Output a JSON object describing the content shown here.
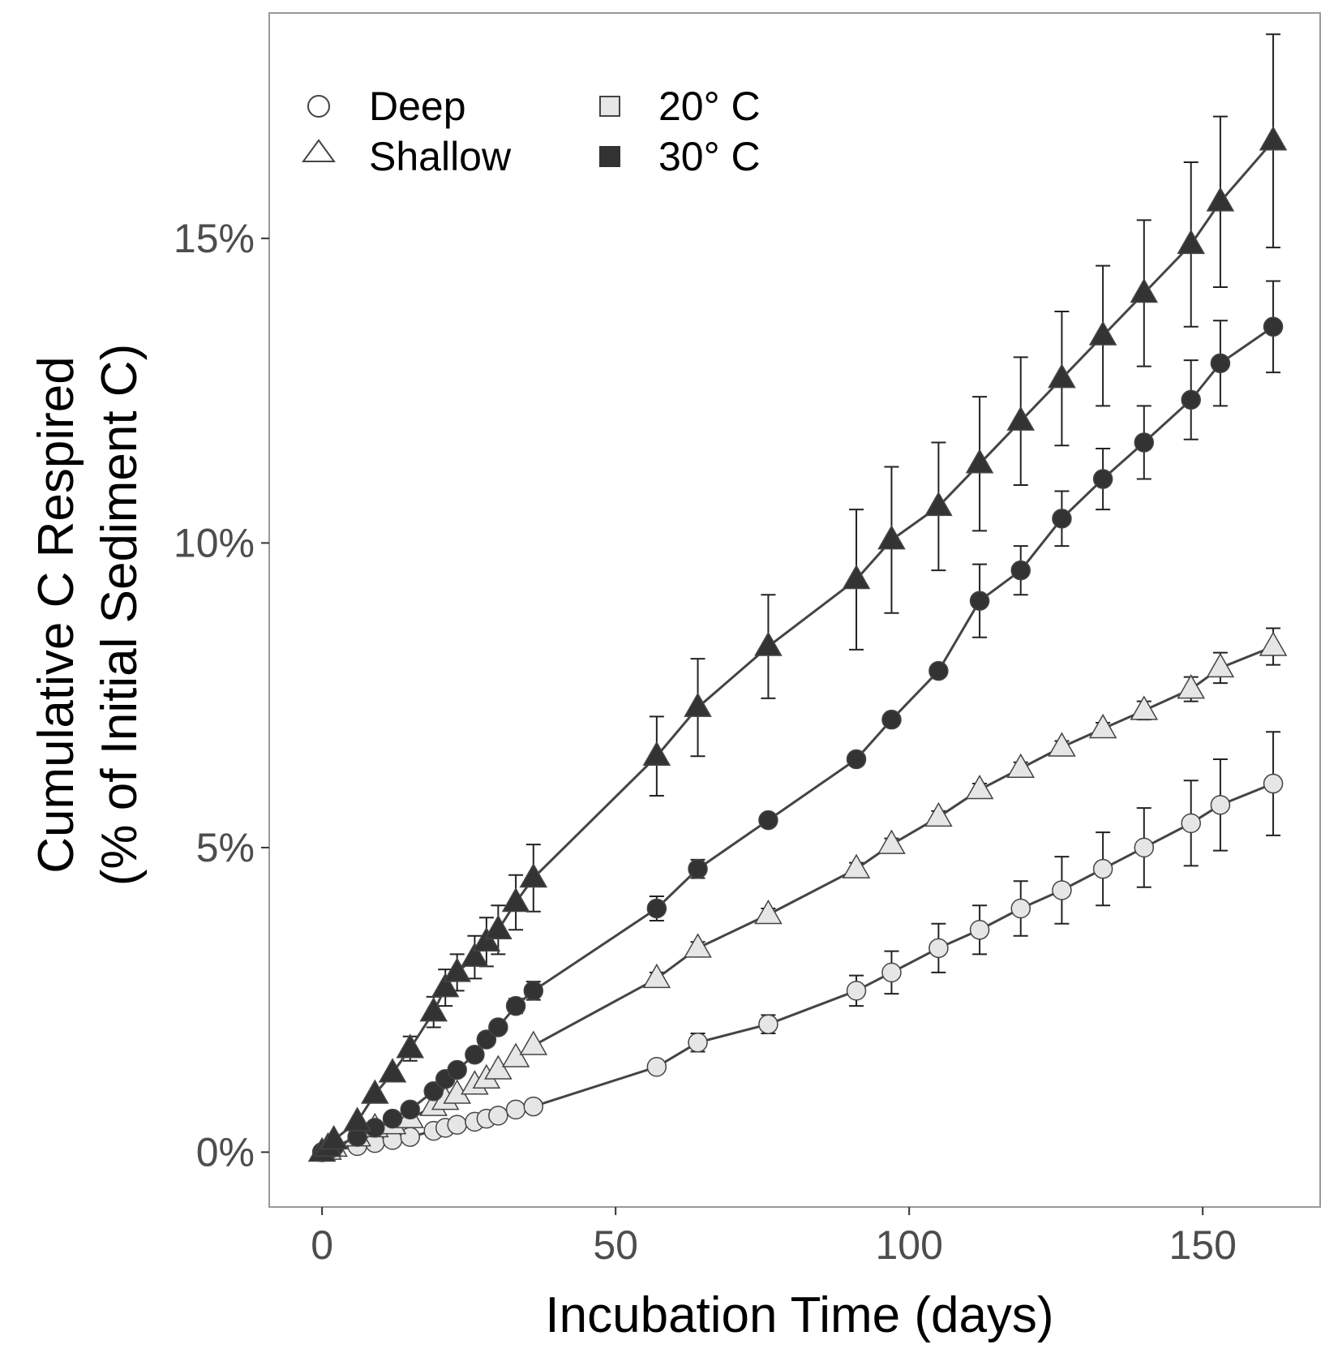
{
  "chart_data": {
    "type": "line",
    "xlabel": "Incubation Time (days)",
    "ylabel_line1": "Cumulative C Respired",
    "ylabel_line2": "(% of Initial Sediment C)",
    "xlim": [
      -9,
      170
    ],
    "ylim": [
      -0.9,
      18.7
    ],
    "x_ticks": [
      0,
      50,
      100,
      150
    ],
    "x_tick_labels": [
      "0",
      "50",
      "100",
      "150"
    ],
    "y_ticks": [
      0,
      5,
      10,
      15
    ],
    "y_tick_labels": [
      "0%",
      "5%",
      "10%",
      "15%"
    ],
    "grid": false,
    "legend": {
      "placement": "top-left",
      "shape_entries": [
        {
          "label": "Deep",
          "marker": "circle"
        },
        {
          "label": "Shallow",
          "marker": "triangle"
        }
      ],
      "color_entries": [
        {
          "label": "20° C",
          "marker": "square",
          "fill": "#e6e6e6"
        },
        {
          "label": "30° C",
          "marker": "square",
          "fill": "#333333"
        }
      ]
    },
    "colors": {
      "light_fill": "#e6e6e6",
      "dark_fill": "#333333",
      "line": "#444444",
      "marker_stroke": "#444444",
      "axis_frame": "#999999"
    },
    "series": [
      {
        "name": "Shallow 30° C",
        "depth": "Shallow",
        "temperature": "30° C",
        "marker": "triangle",
        "fill": "#333333",
        "points": [
          {
            "x": 0,
            "y": 0,
            "err": 0
          },
          {
            "x": 1,
            "y": 0.08,
            "err": 0
          },
          {
            "x": 2,
            "y": 0.2,
            "err": 0
          },
          {
            "x": 6,
            "y": 0.5,
            "err": 0
          },
          {
            "x": 9,
            "y": 0.95,
            "err": 0
          },
          {
            "x": 12,
            "y": 1.3,
            "err": 0
          },
          {
            "x": 15,
            "y": 1.7,
            "err": 0.2
          },
          {
            "x": 19,
            "y": 2.3,
            "err": 0.25
          },
          {
            "x": 21,
            "y": 2.7,
            "err": 0.3
          },
          {
            "x": 23,
            "y": 2.95,
            "err": 0.3
          },
          {
            "x": 26,
            "y": 3.2,
            "err": 0.35
          },
          {
            "x": 28,
            "y": 3.45,
            "err": 0.4
          },
          {
            "x": 30,
            "y": 3.65,
            "err": 0.4
          },
          {
            "x": 33,
            "y": 4.1,
            "err": 0.45
          },
          {
            "x": 36,
            "y": 4.5,
            "err": 0.55
          },
          {
            "x": 57,
            "y": 6.5,
            "err": 0.65
          },
          {
            "x": 64,
            "y": 7.3,
            "err": 0.8
          },
          {
            "x": 76,
            "y": 8.3,
            "err": 0.85
          },
          {
            "x": 91,
            "y": 9.4,
            "err": 1.15
          },
          {
            "x": 97,
            "y": 10.05,
            "err": 1.2
          },
          {
            "x": 105,
            "y": 10.6,
            "err": 1.05
          },
          {
            "x": 112,
            "y": 11.3,
            "err": 1.1
          },
          {
            "x": 119,
            "y": 12.0,
            "err": 1.05
          },
          {
            "x": 126,
            "y": 12.7,
            "err": 1.1
          },
          {
            "x": 133,
            "y": 13.4,
            "err": 1.15
          },
          {
            "x": 140,
            "y": 14.1,
            "err": 1.2
          },
          {
            "x": 148,
            "y": 14.9,
            "err": 1.35
          },
          {
            "x": 153,
            "y": 15.6,
            "err": 1.4
          },
          {
            "x": 162,
            "y": 16.6,
            "err": 1.75
          }
        ]
      },
      {
        "name": "Deep 30° C",
        "depth": "Deep",
        "temperature": "30° C",
        "marker": "circle",
        "fill": "#333333",
        "points": [
          {
            "x": 0,
            "y": 0,
            "err": 0
          },
          {
            "x": 1,
            "y": 0.03,
            "err": 0
          },
          {
            "x": 2,
            "y": 0.08,
            "err": 0
          },
          {
            "x": 6,
            "y": 0.25,
            "err": 0
          },
          {
            "x": 9,
            "y": 0.4,
            "err": 0
          },
          {
            "x": 12,
            "y": 0.55,
            "err": 0
          },
          {
            "x": 15,
            "y": 0.7,
            "err": 0
          },
          {
            "x": 19,
            "y": 1.0,
            "err": 0
          },
          {
            "x": 21,
            "y": 1.2,
            "err": 0
          },
          {
            "x": 23,
            "y": 1.35,
            "err": 0
          },
          {
            "x": 26,
            "y": 1.6,
            "err": 0.1
          },
          {
            "x": 28,
            "y": 1.85,
            "err": 0.1
          },
          {
            "x": 30,
            "y": 2.05,
            "err": 0.1
          },
          {
            "x": 33,
            "y": 2.4,
            "err": 0.12
          },
          {
            "x": 36,
            "y": 2.65,
            "err": 0.15
          },
          {
            "x": 57,
            "y": 4.0,
            "err": 0.2
          },
          {
            "x": 64,
            "y": 4.65,
            "err": 0.15
          },
          {
            "x": 76,
            "y": 5.45,
            "err": 0.1
          },
          {
            "x": 91,
            "y": 6.45,
            "err": 0.1
          },
          {
            "x": 97,
            "y": 7.1,
            "err": 0.1
          },
          {
            "x": 105,
            "y": 7.9,
            "err": 0.1
          },
          {
            "x": 112,
            "y": 9.05,
            "err": 0.6
          },
          {
            "x": 119,
            "y": 9.55,
            "err": 0.4
          },
          {
            "x": 126,
            "y": 10.4,
            "err": 0.45
          },
          {
            "x": 133,
            "y": 11.05,
            "err": 0.5
          },
          {
            "x": 140,
            "y": 11.65,
            "err": 0.6
          },
          {
            "x": 148,
            "y": 12.35,
            "err": 0.65
          },
          {
            "x": 153,
            "y": 12.95,
            "err": 0.7
          },
          {
            "x": 162,
            "y": 13.55,
            "err": 0.75
          }
        ]
      },
      {
        "name": "Shallow 20° C",
        "depth": "Shallow",
        "temperature": "20° C",
        "marker": "triangle",
        "fill": "#e6e6e6",
        "points": [
          {
            "x": 0,
            "y": 0,
            "err": 0
          },
          {
            "x": 1,
            "y": 0.03,
            "err": 0
          },
          {
            "x": 2,
            "y": 0.08,
            "err": 0
          },
          {
            "x": 6,
            "y": 0.25,
            "err": 0
          },
          {
            "x": 9,
            "y": 0.4,
            "err": 0
          },
          {
            "x": 12,
            "y": 0.45,
            "err": 0
          },
          {
            "x": 15,
            "y": 0.55,
            "err": 0
          },
          {
            "x": 19,
            "y": 0.75,
            "err": 0
          },
          {
            "x": 21,
            "y": 0.85,
            "err": 0
          },
          {
            "x": 23,
            "y": 0.95,
            "err": 0
          },
          {
            "x": 26,
            "y": 1.1,
            "err": 0
          },
          {
            "x": 28,
            "y": 1.2,
            "err": 0
          },
          {
            "x": 30,
            "y": 1.35,
            "err": 0
          },
          {
            "x": 33,
            "y": 1.55,
            "err": 0
          },
          {
            "x": 36,
            "y": 1.75,
            "err": 0
          },
          {
            "x": 57,
            "y": 2.85,
            "err": 0.1
          },
          {
            "x": 64,
            "y": 3.35,
            "err": 0.1
          },
          {
            "x": 76,
            "y": 3.9,
            "err": 0.1
          },
          {
            "x": 91,
            "y": 4.65,
            "err": 0.1
          },
          {
            "x": 97,
            "y": 5.05,
            "err": 0.1
          },
          {
            "x": 105,
            "y": 5.5,
            "err": 0.1
          },
          {
            "x": 112,
            "y": 5.95,
            "err": 0.1
          },
          {
            "x": 119,
            "y": 6.3,
            "err": 0.1
          },
          {
            "x": 126,
            "y": 6.65,
            "err": 0.1
          },
          {
            "x": 133,
            "y": 6.95,
            "err": 0.1
          },
          {
            "x": 140,
            "y": 7.25,
            "err": 0.15
          },
          {
            "x": 148,
            "y": 7.6,
            "err": 0.2
          },
          {
            "x": 153,
            "y": 7.95,
            "err": 0.25
          },
          {
            "x": 162,
            "y": 8.3,
            "err": 0.3
          }
        ]
      },
      {
        "name": "Deep 20° C",
        "depth": "Deep",
        "temperature": "20° C",
        "marker": "circle",
        "fill": "#e6e6e6",
        "points": [
          {
            "x": 0,
            "y": 0,
            "err": 0
          },
          {
            "x": 1,
            "y": 0.02,
            "err": 0
          },
          {
            "x": 2,
            "y": 0.05,
            "err": 0
          },
          {
            "x": 6,
            "y": 0.1,
            "err": 0
          },
          {
            "x": 9,
            "y": 0.15,
            "err": 0
          },
          {
            "x": 12,
            "y": 0.2,
            "err": 0
          },
          {
            "x": 15,
            "y": 0.25,
            "err": 0
          },
          {
            "x": 19,
            "y": 0.35,
            "err": 0
          },
          {
            "x": 21,
            "y": 0.4,
            "err": 0
          },
          {
            "x": 23,
            "y": 0.45,
            "err": 0
          },
          {
            "x": 26,
            "y": 0.5,
            "err": 0
          },
          {
            "x": 28,
            "y": 0.55,
            "err": 0
          },
          {
            "x": 30,
            "y": 0.6,
            "err": 0
          },
          {
            "x": 33,
            "y": 0.7,
            "err": 0
          },
          {
            "x": 36,
            "y": 0.75,
            "err": 0
          },
          {
            "x": 57,
            "y": 1.4,
            "err": 0.1
          },
          {
            "x": 64,
            "y": 1.8,
            "err": 0.15
          },
          {
            "x": 76,
            "y": 2.1,
            "err": 0.15
          },
          {
            "x": 91,
            "y": 2.65,
            "err": 0.25
          },
          {
            "x": 97,
            "y": 2.95,
            "err": 0.35
          },
          {
            "x": 105,
            "y": 3.35,
            "err": 0.4
          },
          {
            "x": 112,
            "y": 3.65,
            "err": 0.4
          },
          {
            "x": 119,
            "y": 4.0,
            "err": 0.45
          },
          {
            "x": 126,
            "y": 4.3,
            "err": 0.55
          },
          {
            "x": 133,
            "y": 4.65,
            "err": 0.6
          },
          {
            "x": 140,
            "y": 5.0,
            "err": 0.65
          },
          {
            "x": 148,
            "y": 5.4,
            "err": 0.7
          },
          {
            "x": 153,
            "y": 5.7,
            "err": 0.75
          },
          {
            "x": 162,
            "y": 6.05,
            "err": 0.85
          }
        ]
      }
    ]
  }
}
